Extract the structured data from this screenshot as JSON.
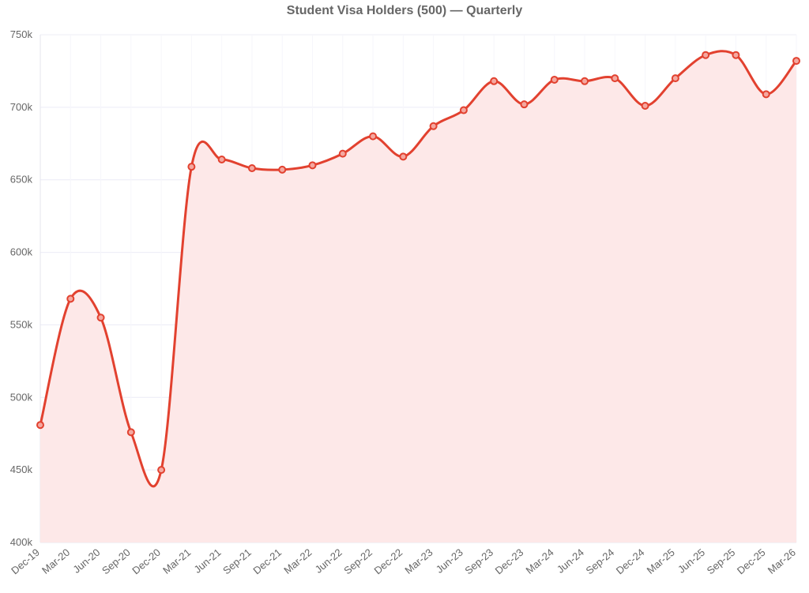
{
  "chart_data": {
    "type": "area",
    "title": "Student Visa Holders (500) — Quarterly",
    "xlabel": "",
    "ylabel": "",
    "ylim": [
      400000,
      750000
    ],
    "yticks": [
      400000,
      450000,
      500000,
      550000,
      600000,
      650000,
      700000,
      750000
    ],
    "ytick_labels": [
      "400k",
      "450k",
      "500k",
      "550k",
      "600k",
      "650k",
      "700k",
      "750k"
    ],
    "categories": [
      "Dec-19",
      "Mar-20",
      "Jun-20",
      "Sep-20",
      "Dec-20",
      "Mar-21",
      "Jun-21",
      "Sep-21",
      "Dec-21",
      "Mar-22",
      "Jun-22",
      "Sep-22",
      "Dec-22",
      "Mar-23",
      "Jun-23",
      "Sep-23",
      "Dec-23",
      "Mar-24",
      "Jun-24",
      "Sep-24",
      "Dec-24",
      "Mar-25",
      "Jun-25",
      "Sep-25",
      "Dec-25",
      "Mar-26"
    ],
    "series": [
      {
        "values": [
          481000,
          568000,
          555000,
          476000,
          450000,
          659000,
          664000,
          658000,
          657000,
          660000,
          668000,
          680000,
          666000,
          687000,
          698000,
          718000,
          702000,
          719000,
          718000,
          720000,
          701000,
          720000,
          736000,
          736000,
          709000,
          732000
        ]
      }
    ],
    "grid": true,
    "legend": "none",
    "colors": {
      "line": "#e2412f",
      "fill": "#fde8e8",
      "grid": "#ececf6",
      "text": "#666666"
    }
  }
}
